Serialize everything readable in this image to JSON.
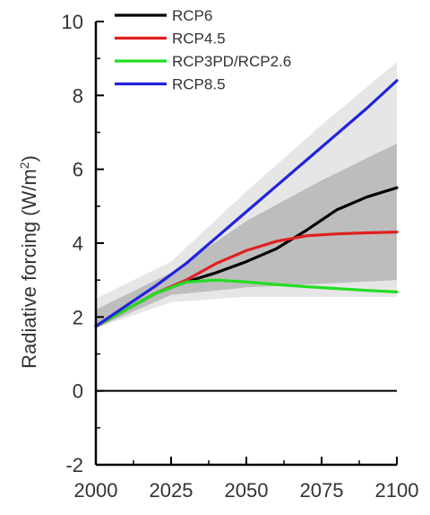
{
  "chart_data": {
    "type": "line",
    "ylabel": "Radiative forcing (W/m",
    "ylabel_sup": "2",
    "ylabel_close": ")",
    "xlim": [
      2000,
      2100
    ],
    "ylim": [
      -2,
      10
    ],
    "x_ticks": [
      2000,
      2025,
      2050,
      2075,
      2100
    ],
    "y_ticks": [
      -2,
      0,
      2,
      4,
      6,
      8,
      10
    ],
    "zero_line": true,
    "grid": false,
    "legend_placement": "top-left",
    "series": [
      {
        "name": "RCP6",
        "color": "#000000",
        "x": [
          2000,
          2010,
          2020,
          2030,
          2040,
          2050,
          2060,
          2070,
          2080,
          2090,
          2100
        ],
        "y": [
          1.75,
          2.2,
          2.65,
          2.95,
          3.2,
          3.5,
          3.85,
          4.35,
          4.9,
          5.25,
          5.5
        ]
      },
      {
        "name": "RCP4.5",
        "color": "#e02020",
        "x": [
          2000,
          2010,
          2020,
          2030,
          2040,
          2050,
          2060,
          2070,
          2080,
          2090,
          2100
        ],
        "y": [
          1.75,
          2.2,
          2.65,
          3.0,
          3.45,
          3.8,
          4.05,
          4.2,
          4.25,
          4.28,
          4.3
        ]
      },
      {
        "name": "RCP3PD/RCP2.6",
        "color": "#22dd22",
        "x": [
          2000,
          2010,
          2020,
          2030,
          2040,
          2050,
          2060,
          2070,
          2080,
          2090,
          2100
        ],
        "y": [
          1.75,
          2.2,
          2.65,
          2.95,
          3.0,
          2.95,
          2.88,
          2.82,
          2.77,
          2.72,
          2.68
        ]
      },
      {
        "name": "RCP8.5",
        "color": "#2222dd",
        "x": [
          2000,
          2010,
          2020,
          2030,
          2040,
          2050,
          2060,
          2070,
          2080,
          2090,
          2100
        ],
        "y": [
          1.75,
          2.3,
          2.85,
          3.45,
          4.15,
          4.85,
          5.55,
          6.25,
          6.95,
          7.65,
          8.4
        ]
      }
    ],
    "bands": [
      {
        "color": "#e6e6e6",
        "x": [
          2000,
          2025,
          2050,
          2075,
          2100
        ],
        "upper": [
          2.5,
          3.5,
          5.4,
          7.2,
          8.9
        ],
        "lower": [
          1.7,
          2.4,
          2.55,
          2.55,
          2.55
        ]
      },
      {
        "color": "#bdbdbd",
        "x": [
          2000,
          2025,
          2050,
          2075,
          2100
        ],
        "upper": [
          2.2,
          3.2,
          4.6,
          5.7,
          6.7
        ],
        "lower": [
          1.7,
          2.6,
          2.8,
          2.9,
          3.0
        ]
      }
    ]
  }
}
